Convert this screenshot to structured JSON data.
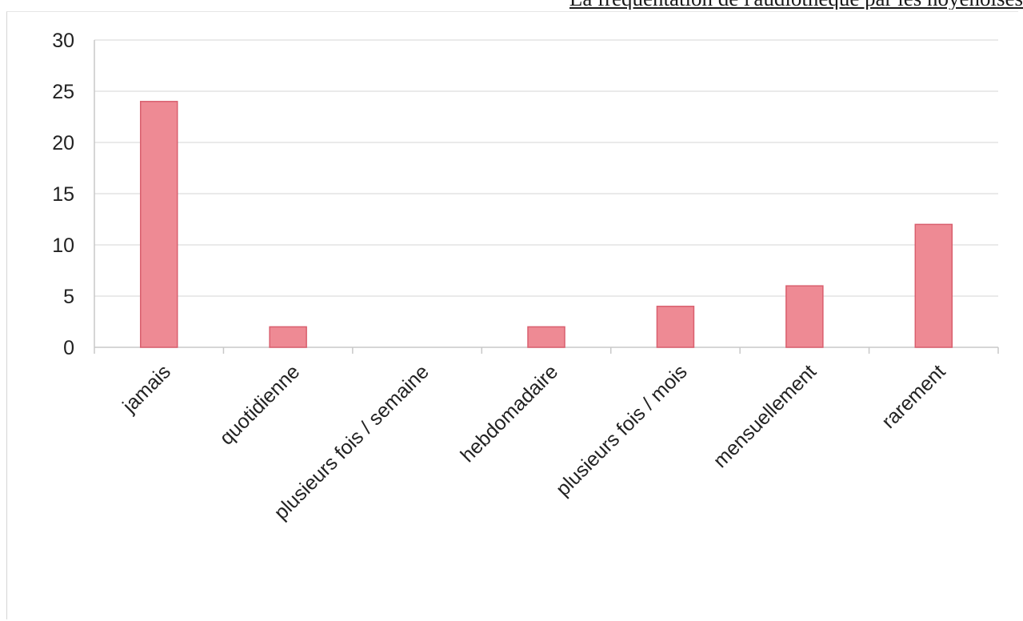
{
  "page_title": "La fréquentation de l'audiothèque par les noyenoises",
  "chart_data": {
    "type": "bar",
    "title": "",
    "xlabel": "",
    "ylabel": "",
    "categories": [
      "jamais",
      "quotidienne",
      "plusieurs fois / semaine",
      "hebdomadaire",
      "plusieurs fois / mois",
      "mensuellement",
      "rarement"
    ],
    "values": [
      24,
      2,
      0,
      2,
      4,
      6,
      12
    ],
    "ylim": [
      0,
      30
    ],
    "yticks": [
      "0",
      "5",
      "10",
      "15",
      "20",
      "25",
      "30"
    ],
    "grid": true,
    "legend": "none"
  },
  "colors": {
    "bar_fill": "#ee8a94",
    "bar_stroke": "#d95f6e",
    "grid": "#e4e4e4",
    "axis": "#c8c8c8"
  }
}
